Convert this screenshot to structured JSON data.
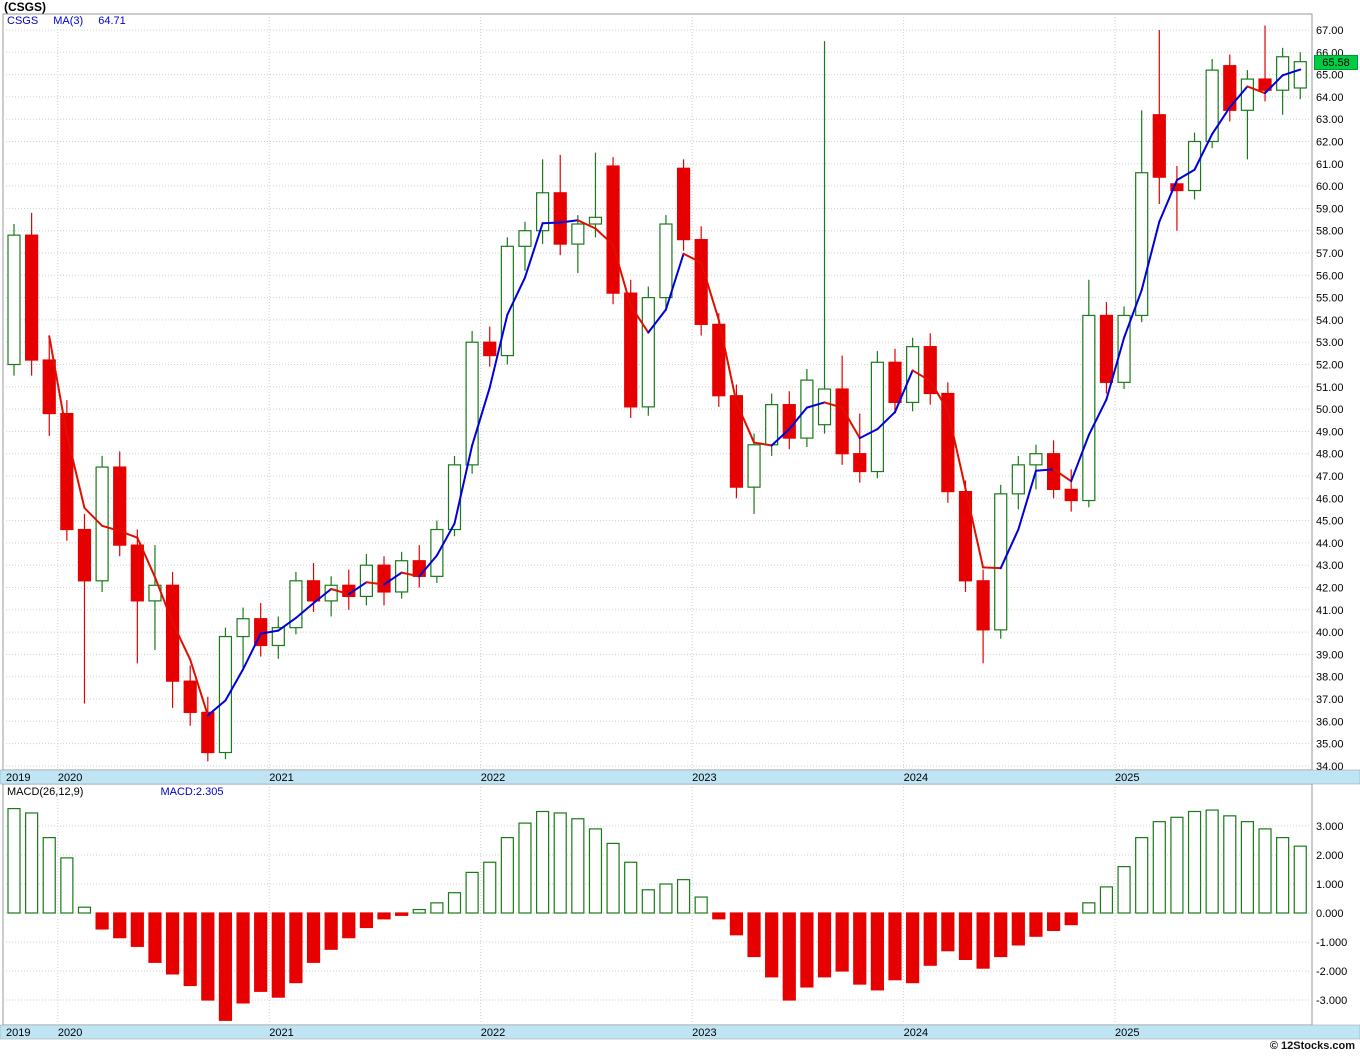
{
  "title": "(CSGS)",
  "copyright": "© 12Stocks.com",
  "price_panel": {
    "legend_symbol": "CSGS",
    "legend_ma": "MA(3)",
    "legend_ma_value": "64.71",
    "last_price": "65.58"
  },
  "macd_panel": {
    "legend": "MACD(26,12,9)",
    "legend_value": "MACD:2.305"
  },
  "colors": {
    "up": "#1a7a1a",
    "up_fill": "#ffffff",
    "down": "#e60000",
    "ma_rising": "#0000dd",
    "ma_falling": "#e01000",
    "band_bg": "#bfe4f3",
    "tag_bg": "#00cc44",
    "grid": "#cfcfcf",
    "border": "#9a9a9a"
  },
  "chart_data": {
    "type": "candlestick",
    "symbol": "CSGS",
    "title": "(CSGS) monthly candles with MA(3) and MACD(26,12,9) histogram",
    "ma_window": 3,
    "x_years": [
      "2019",
      "2020",
      "2021",
      "2022",
      "2023",
      "2024",
      "2025"
    ],
    "year_start_indices": [
      0,
      3,
      15,
      27,
      39,
      51,
      63
    ],
    "price_axis": {
      "min": 34,
      "max": 67,
      "step": 1,
      "label_format": "2dp"
    },
    "macd_axis": {
      "min": -3,
      "max": 3,
      "step": 1,
      "label_format": "3dp"
    },
    "last_close": 65.58,
    "last_macd": 2.305,
    "candles_ohlc": [
      [
        52.0,
        58.3,
        51.5,
        57.8
      ],
      [
        57.8,
        58.8,
        51.5,
        52.2
      ],
      [
        52.2,
        53.2,
        48.8,
        49.8
      ],
      [
        49.8,
        50.4,
        44.1,
        44.6
      ],
      [
        44.6,
        45.3,
        36.8,
        42.3
      ],
      [
        42.3,
        47.9,
        41.8,
        47.4
      ],
      [
        47.4,
        48.1,
        43.4,
        43.9
      ],
      [
        43.9,
        44.6,
        38.6,
        41.4
      ],
      [
        41.4,
        43.9,
        39.2,
        42.1
      ],
      [
        42.1,
        42.7,
        36.6,
        37.8
      ],
      [
        37.8,
        38.5,
        35.8,
        36.4
      ],
      [
        36.4,
        37.1,
        34.2,
        34.6
      ],
      [
        34.6,
        40.2,
        34.3,
        39.8
      ],
      [
        39.8,
        41.1,
        38.4,
        40.6
      ],
      [
        40.6,
        41.3,
        38.9,
        39.4
      ],
      [
        39.4,
        40.7,
        38.8,
        40.2
      ],
      [
        40.2,
        42.7,
        39.9,
        42.3
      ],
      [
        42.3,
        43.1,
        40.9,
        41.4
      ],
      [
        41.4,
        42.5,
        40.7,
        42.1
      ],
      [
        42.1,
        42.8,
        41.0,
        41.6
      ],
      [
        41.6,
        43.5,
        41.2,
        43.0
      ],
      [
        43.0,
        43.4,
        41.2,
        41.8
      ],
      [
        41.8,
        43.6,
        41.5,
        43.2
      ],
      [
        43.2,
        43.9,
        42.0,
        42.5
      ],
      [
        42.5,
        45.0,
        42.2,
        44.6
      ],
      [
        44.6,
        47.9,
        44.3,
        47.5
      ],
      [
        47.5,
        53.5,
        47.1,
        53.0
      ],
      [
        53.0,
        53.7,
        51.9,
        52.4
      ],
      [
        52.4,
        57.7,
        52.0,
        57.3
      ],
      [
        57.3,
        58.4,
        56.2,
        58.0
      ],
      [
        58.0,
        61.2,
        57.4,
        59.7
      ],
      [
        59.7,
        61.4,
        56.9,
        57.4
      ],
      [
        57.4,
        58.7,
        56.1,
        58.3
      ],
      [
        58.3,
        61.5,
        57.7,
        58.6
      ],
      [
        60.9,
        61.3,
        54.7,
        55.2
      ],
      [
        55.2,
        55.8,
        49.6,
        50.1
      ],
      [
        50.1,
        55.5,
        49.7,
        55.0
      ],
      [
        55.0,
        58.7,
        54.4,
        58.3
      ],
      [
        60.8,
        61.2,
        57.1,
        57.6
      ],
      [
        57.6,
        58.2,
        53.3,
        53.8
      ],
      [
        53.8,
        54.3,
        50.1,
        50.6
      ],
      [
        50.6,
        51.1,
        46.0,
        46.5
      ],
      [
        46.5,
        48.9,
        45.3,
        48.4
      ],
      [
        48.4,
        50.7,
        47.9,
        50.2
      ],
      [
        50.2,
        50.8,
        48.2,
        48.7
      ],
      [
        48.7,
        51.8,
        48.3,
        51.3
      ],
      [
        49.3,
        66.5,
        48.9,
        50.9
      ],
      [
        50.9,
        52.4,
        47.5,
        48.0
      ],
      [
        48.0,
        49.8,
        46.7,
        47.2
      ],
      [
        47.2,
        52.6,
        46.9,
        52.1
      ],
      [
        52.1,
        52.7,
        49.8,
        50.3
      ],
      [
        50.3,
        53.2,
        49.9,
        52.8
      ],
      [
        52.8,
        53.4,
        50.2,
        50.7
      ],
      [
        50.7,
        51.2,
        45.8,
        46.3
      ],
      [
        46.3,
        46.8,
        41.8,
        42.3
      ],
      [
        42.3,
        42.8,
        38.6,
        40.1
      ],
      [
        40.1,
        46.6,
        39.7,
        46.2
      ],
      [
        46.2,
        47.9,
        45.5,
        47.5
      ],
      [
        47.5,
        48.4,
        46.4,
        48.0
      ],
      [
        48.0,
        48.6,
        46.0,
        46.4
      ],
      [
        46.4,
        47.3,
        45.4,
        45.9
      ],
      [
        45.9,
        55.8,
        45.6,
        54.2
      ],
      [
        54.2,
        54.8,
        50.7,
        51.2
      ],
      [
        51.2,
        54.6,
        50.9,
        54.2
      ],
      [
        54.2,
        63.4,
        53.9,
        60.6
      ],
      [
        63.2,
        67.0,
        59.2,
        60.4
      ],
      [
        60.1,
        60.9,
        58.0,
        59.8
      ],
      [
        59.8,
        62.4,
        59.4,
        62.0
      ],
      [
        62.0,
        65.7,
        61.7,
        65.2
      ],
      [
        65.4,
        65.9,
        62.9,
        63.4
      ],
      [
        63.4,
        65.2,
        61.2,
        64.8
      ],
      [
        64.8,
        67.2,
        63.8,
        64.3
      ],
      [
        64.3,
        66.2,
        63.2,
        65.8
      ],
      [
        64.4,
        66.0,
        63.9,
        65.58
      ]
    ],
    "macd_values": [
      3.6,
      3.45,
      2.6,
      1.9,
      0.2,
      -0.55,
      -0.85,
      -1.15,
      -1.7,
      -2.1,
      -2.5,
      -3.0,
      -3.7,
      -3.1,
      -2.7,
      -2.9,
      -2.4,
      -1.7,
      -1.25,
      -0.85,
      -0.5,
      -0.2,
      -0.08,
      0.12,
      0.35,
      0.7,
      1.4,
      1.75,
      2.6,
      3.1,
      3.5,
      3.45,
      3.25,
      2.9,
      2.4,
      1.75,
      0.8,
      1.0,
      1.15,
      0.55,
      -0.2,
      -0.75,
      -1.5,
      -2.2,
      -3.0,
      -2.55,
      -2.2,
      -2.0,
      -2.45,
      -2.65,
      -2.3,
      -2.4,
      -1.8,
      -1.3,
      -1.6,
      -1.9,
      -1.5,
      -1.1,
      -0.8,
      -0.6,
      -0.4,
      0.35,
      0.9,
      1.6,
      2.6,
      3.15,
      3.3,
      3.5,
      3.55,
      3.35,
      3.15,
      2.9,
      2.6,
      2.305
    ]
  }
}
